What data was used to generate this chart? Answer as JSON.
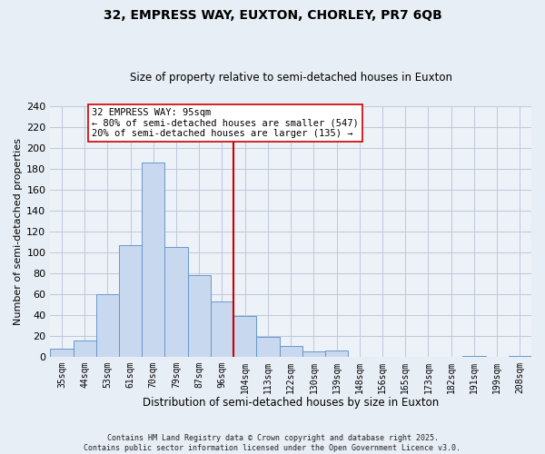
{
  "title": "32, EMPRESS WAY, EUXTON, CHORLEY, PR7 6QB",
  "subtitle": "Size of property relative to semi-detached houses in Euxton",
  "xlabel": "Distribution of semi-detached houses by size in Euxton",
  "ylabel": "Number of semi-detached properties",
  "bar_labels": [
    "35sqm",
    "44sqm",
    "53sqm",
    "61sqm",
    "70sqm",
    "79sqm",
    "87sqm",
    "96sqm",
    "104sqm",
    "113sqm",
    "122sqm",
    "130sqm",
    "139sqm",
    "148sqm",
    "156sqm",
    "165sqm",
    "173sqm",
    "182sqm",
    "191sqm",
    "199sqm",
    "208sqm"
  ],
  "bar_values": [
    8,
    15,
    60,
    107,
    186,
    105,
    78,
    53,
    39,
    19,
    10,
    5,
    6,
    0,
    0,
    0,
    0,
    0,
    1,
    0,
    1
  ],
  "bar_color": "#c8d8ee",
  "bar_edge_color": "#6699cc",
  "vline_x": 7.5,
  "vline_color": "#cc0000",
  "ylim": [
    0,
    240
  ],
  "yticks": [
    0,
    20,
    40,
    60,
    80,
    100,
    120,
    140,
    160,
    180,
    200,
    220,
    240
  ],
  "annotation_title": "32 EMPRESS WAY: 95sqm",
  "annotation_line1": "← 80% of semi-detached houses are smaller (547)",
  "annotation_line2": "20% of semi-detached houses are larger (135) →",
  "footer1": "Contains HM Land Registry data © Crown copyright and database right 2025.",
  "footer2": "Contains public sector information licensed under the Open Government Licence v3.0.",
  "bg_color": "#e8eef5",
  "plot_bg_color": "#edf1f8",
  "grid_color": "#c0c8d8"
}
